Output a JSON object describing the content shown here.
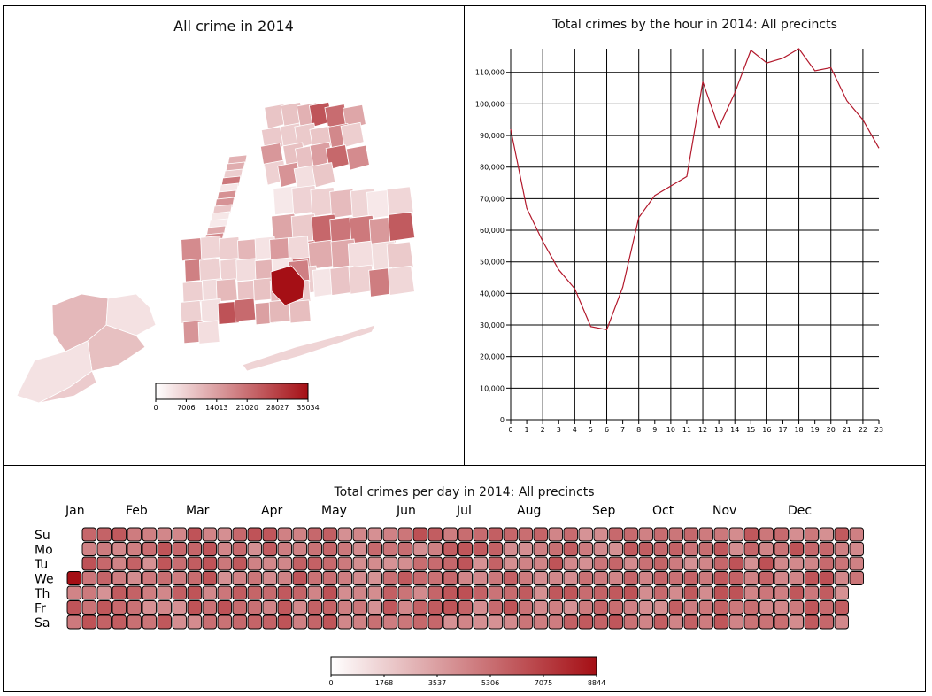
{
  "map": {
    "title": "All crime in 2014",
    "legend": {
      "min": 0,
      "max": 35034,
      "ticks": [
        "0",
        "7006",
        "14013",
        "21020",
        "28027",
        "35034"
      ],
      "color_low": "#ffffff",
      "color_high": "#a50f15"
    }
  },
  "hourly": {
    "title": "Total crimes by the hour in 2014: All precincts",
    "line_color": "#b2182b"
  },
  "calendar": {
    "title": "Total crimes per day in 2014: All precincts",
    "months": [
      "Jan",
      "Feb",
      "Mar",
      "Apr",
      "May",
      "Jun",
      "Jul",
      "Aug",
      "Sep",
      "Oct",
      "Nov",
      "Dec"
    ],
    "weekdays": [
      "Su",
      "Mo",
      "Tu",
      "We",
      "Th",
      "Fr",
      "Sa"
    ],
    "legend": {
      "min": 0,
      "max": 8844,
      "ticks": [
        "0",
        "1768",
        "3537",
        "5306",
        "7075",
        "8844"
      ],
      "color_low": "#ffffff",
      "color_high": "#a50f15"
    }
  },
  "chart_data": [
    {
      "type": "map",
      "title": "All crime in 2014",
      "legend_ticks": [
        0,
        7006,
        14013,
        21020,
        28027,
        35034
      ]
    },
    {
      "type": "line",
      "title": "Total crimes by the hour in 2014: All precincts",
      "x": [
        0,
        1,
        2,
        3,
        4,
        5,
        6,
        7,
        8,
        9,
        10,
        11,
        12,
        13,
        14,
        15,
        16,
        17,
        18,
        19,
        20,
        21,
        22,
        23
      ],
      "values": [
        92000,
        67000,
        56500,
        47500,
        41500,
        29500,
        28500,
        42000,
        64000,
        71000,
        74000,
        77000,
        107000,
        92500,
        103500,
        117000,
        113000,
        114500,
        117500,
        110500,
        111500,
        101000,
        95000,
        86000
      ],
      "xlim": [
        0,
        23
      ],
      "ylim": [
        0,
        117500
      ],
      "yticks": [
        0,
        10000,
        20000,
        30000,
        40000,
        50000,
        60000,
        70000,
        80000,
        90000,
        100000,
        110000
      ],
      "ytick_labels": [
        "0",
        "10,000",
        "20,000",
        "30,000",
        "40,000",
        "50,000",
        "60,000",
        "70,000",
        "80,000",
        "90,000",
        "100,000",
        "110,000"
      ],
      "grid": true
    },
    {
      "type": "heatmap",
      "title": "Total crimes per day in 2014: All precincts",
      "year": 2014,
      "first_weekday": "We",
      "legend_ticks": [
        0,
        1768,
        3537,
        5306,
        7075,
        8844
      ],
      "highlight_days": [
        {
          "day_of_year": 1,
          "value": 8844
        }
      ]
    }
  ]
}
